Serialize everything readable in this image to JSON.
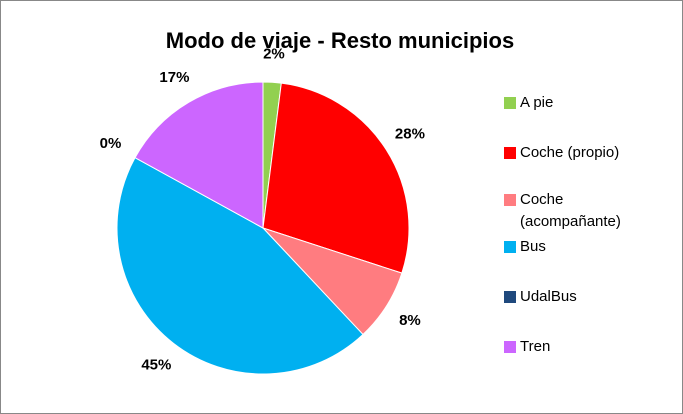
{
  "chart_data": {
    "type": "pie",
    "title": "Modo de viaje - Resto municipios",
    "categories": [
      "A pie",
      "Coche (propio)",
      "Coche (acompañante)",
      "Bus",
      "UdalBus",
      "Tren"
    ],
    "values": [
      2,
      28,
      8,
      45,
      0,
      17
    ],
    "value_labels": [
      "2%",
      "28%",
      "8%",
      "45%",
      "0%",
      "17%"
    ],
    "colors": [
      "#92d050",
      "#ff0000",
      "#ff7c80",
      "#00b0f0",
      "#1f497d",
      "#cc66ff"
    ],
    "legend": "right"
  }
}
